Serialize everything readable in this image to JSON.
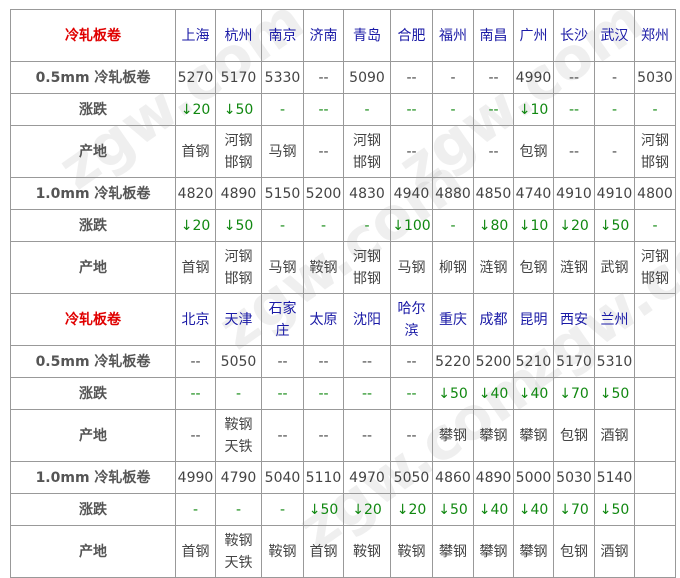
{
  "watermark": "zgw.com 中国互联网百强企业",
  "colors": {
    "header": "#e00000",
    "city": "#1a1aa6",
    "change": "#118811"
  },
  "sections": [
    {
      "title": "冷轧板卷",
      "cities": [
        "上海",
        "杭州",
        "南京",
        "济南",
        "青岛",
        "合肥",
        "福州",
        "南昌",
        "广州",
        "长沙",
        "武汉",
        "郑州"
      ],
      "groups": [
        {
          "label": "0.5mm 冷轧板卷",
          "prices": [
            "5270",
            "5170",
            "5330",
            "--",
            "5090",
            "--",
            "-",
            "--",
            "4990",
            "--",
            "-",
            "5030"
          ],
          "change_label": "涨跌",
          "changes": [
            "↓20",
            "↓50",
            "-",
            "--",
            "-",
            "--",
            "-",
            "--",
            "↓10",
            "--",
            "-",
            "-"
          ],
          "origin_label": "产地",
          "origins": [
            "首钢",
            "河钢\n邯钢",
            "马钢",
            "--",
            "河钢\n邯钢",
            "--",
            "",
            "--",
            "包钢",
            "--",
            "-",
            "河钢\n邯钢"
          ]
        },
        {
          "label": "1.0mm 冷轧板卷",
          "prices": [
            "4820",
            "4890",
            "5150",
            "5200",
            "4830",
            "4940",
            "4880",
            "4850",
            "4740",
            "4910",
            "4910",
            "4800"
          ],
          "change_label": "涨跌",
          "changes": [
            "↓20",
            "↓50",
            "-",
            "-",
            "-",
            "↓100",
            "-",
            "↓80",
            "↓10",
            "↓20",
            "↓50",
            "-"
          ],
          "origin_label": "产地",
          "origins": [
            "首钢",
            "河钢\n邯钢",
            "马钢",
            "鞍钢",
            "河钢\n邯钢",
            "马钢",
            "柳钢",
            "涟钢",
            "包钢",
            "涟钢",
            "武钢",
            "河钢\n邯钢"
          ]
        }
      ]
    },
    {
      "title": "冷轧板卷",
      "cities": [
        "北京",
        "天津",
        "石家\n庄",
        "太原",
        "沈阳",
        "哈尔\n滨",
        "重庆",
        "成都",
        "昆明",
        "西安",
        "兰州",
        ""
      ],
      "groups": [
        {
          "label": "0.5mm 冷轧板卷",
          "prices": [
            "--",
            "5050",
            "--",
            "--",
            "--",
            "--",
            "5220",
            "5200",
            "5210",
            "5170",
            "5310",
            ""
          ],
          "change_label": "涨跌",
          "changes": [
            "--",
            "-",
            "--",
            "--",
            "--",
            "--",
            "↓50",
            "↓40",
            "↓40",
            "↓70",
            "↓50",
            ""
          ],
          "origin_label": "产地",
          "origins": [
            "--",
            "鞍钢\n天铁",
            "--",
            "--",
            "--",
            "--",
            "攀钢",
            "攀钢",
            "攀钢",
            "包钢",
            "酒钢",
            ""
          ]
        },
        {
          "label": "1.0mm 冷轧板卷",
          "prices": [
            "4990",
            "4790",
            "5040",
            "5110",
            "4970",
            "5050",
            "4860",
            "4890",
            "5000",
            "5030",
            "5140",
            ""
          ],
          "change_label": "涨跌",
          "changes": [
            "-",
            "-",
            "-",
            "↓50",
            "↓20",
            "↓20",
            "↓50",
            "↓40",
            "↓40",
            "↓70",
            "↓50",
            ""
          ],
          "origin_label": "产地",
          "origins": [
            "首钢",
            "鞍钢\n天铁",
            "鞍钢",
            "首钢",
            "鞍钢",
            "鞍钢",
            "攀钢",
            "攀钢",
            "攀钢",
            "包钢",
            "酒钢",
            ""
          ]
        }
      ]
    }
  ]
}
